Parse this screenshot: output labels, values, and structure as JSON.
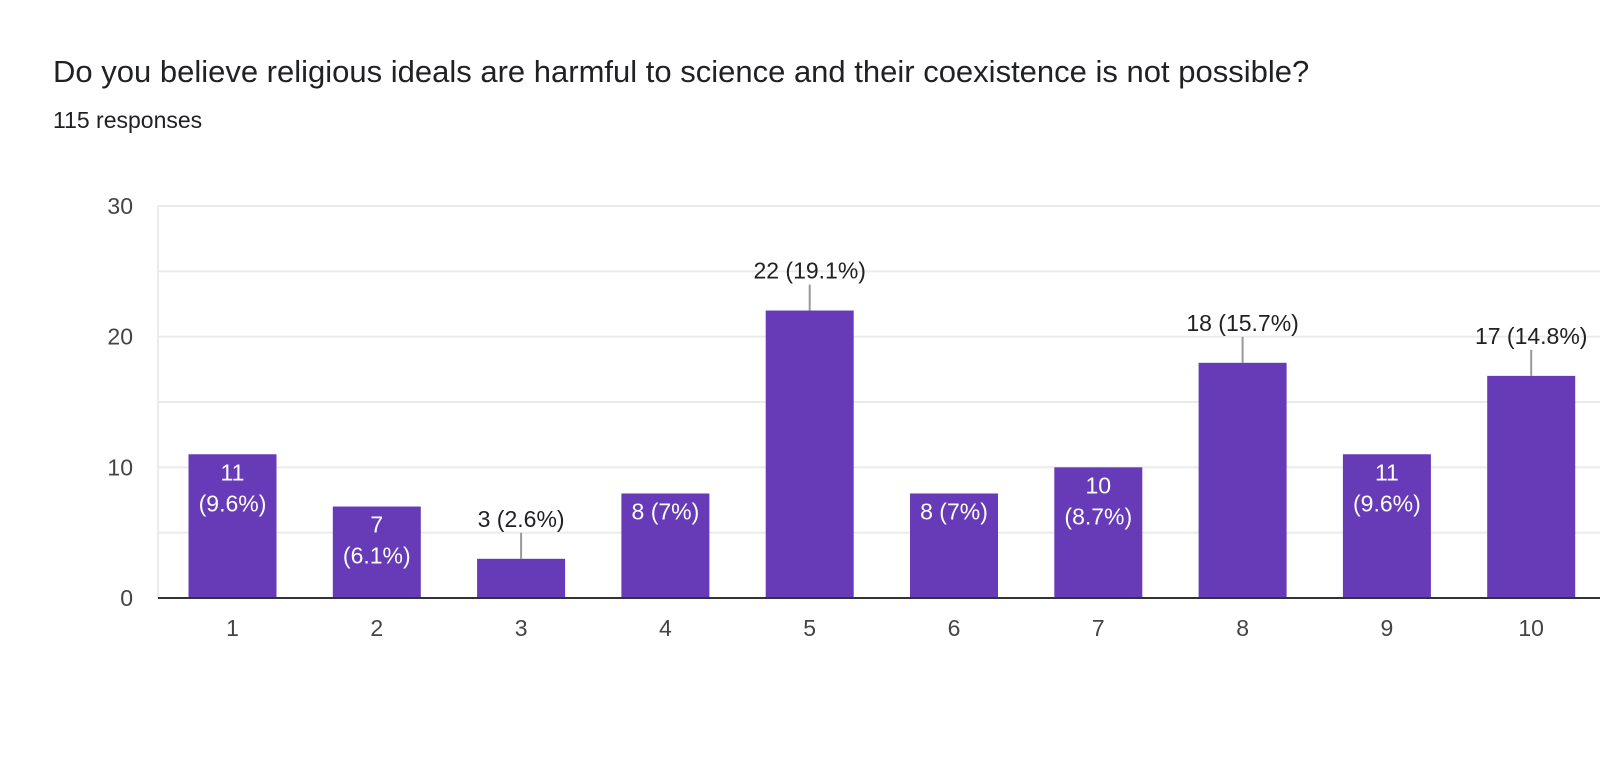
{
  "title": "Do you believe religious ideals are harmful to science and their coexistence is not possible?",
  "responses": "115 responses",
  "colors": {
    "bar": "#673ab7",
    "gridline": "#ebebeb",
    "baseline": "#333333",
    "leader": "#999999"
  },
  "chart_data": {
    "type": "bar",
    "title": "Do you believe religious ideals are harmful to science and their coexistence is not possible?",
    "subtitle": "115 responses",
    "categories": [
      "1",
      "2",
      "3",
      "4",
      "5",
      "6",
      "7",
      "8",
      "9",
      "10"
    ],
    "values": [
      11,
      7,
      3,
      8,
      22,
      8,
      10,
      18,
      11,
      17
    ],
    "percentages": [
      "9.6%",
      "6.1%",
      "2.6%",
      "7%",
      "19.1%",
      "7%",
      "8.7%",
      "15.7%",
      "9.6%",
      "14.8%"
    ],
    "data_labels": [
      {
        "lines": [
          "11",
          "(9.6%)"
        ],
        "placement": "inside"
      },
      {
        "lines": [
          "7",
          "(6.1%)"
        ],
        "placement": "inside"
      },
      {
        "lines": [
          "3 (2.6%)"
        ],
        "placement": "above"
      },
      {
        "lines": [
          "8 (7%)"
        ],
        "placement": "inside"
      },
      {
        "lines": [
          "22 (19.1%)"
        ],
        "placement": "above"
      },
      {
        "lines": [
          "8 (7%)"
        ],
        "placement": "inside"
      },
      {
        "lines": [
          "10",
          "(8.7%)"
        ],
        "placement": "inside"
      },
      {
        "lines": [
          "18 (15.7%)"
        ],
        "placement": "above"
      },
      {
        "lines": [
          "11",
          "(9.6%)"
        ],
        "placement": "inside"
      },
      {
        "lines": [
          "17 (14.8%)"
        ],
        "placement": "above"
      }
    ],
    "y_ticks": [
      0,
      10,
      20,
      30
    ],
    "ylim": [
      0,
      30
    ],
    "xlabel": "",
    "ylabel": "",
    "grid": true,
    "legend": "none"
  }
}
